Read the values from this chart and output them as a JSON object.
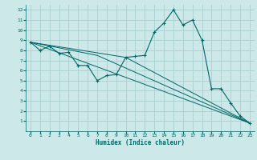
{
  "xlabel": "Humidex (Indice chaleur)",
  "bg_color": "#cce8e8",
  "grid_color": "#aad0d0",
  "line_color": "#006666",
  "xlim": [
    -0.5,
    23.5
  ],
  "ylim": [
    0,
    12.5
  ],
  "series": [
    [
      0,
      8.8
    ],
    [
      1,
      8.0
    ],
    [
      2,
      8.4
    ],
    [
      3,
      7.7
    ],
    [
      4,
      7.8
    ],
    [
      5,
      6.5
    ],
    [
      6,
      6.5
    ],
    [
      7,
      5.0
    ],
    [
      8,
      5.5
    ],
    [
      9,
      5.6
    ],
    [
      10,
      7.3
    ],
    [
      11,
      7.4
    ],
    [
      12,
      7.5
    ],
    [
      13,
      9.8
    ],
    [
      14,
      10.7
    ],
    [
      15,
      12.0
    ],
    [
      16,
      10.5
    ],
    [
      17,
      11.0
    ],
    [
      18,
      9.0
    ],
    [
      19,
      4.2
    ],
    [
      20,
      4.2
    ],
    [
      21,
      2.8
    ],
    [
      22,
      1.5
    ],
    [
      23,
      0.8
    ]
  ],
  "line2": [
    [
      0,
      8.8
    ],
    [
      23,
      0.8
    ]
  ],
  "line3": [
    [
      0,
      8.8
    ],
    [
      10,
      7.3
    ],
    [
      23,
      0.8
    ]
  ],
  "line4": [
    [
      0,
      8.8
    ],
    [
      7,
      7.5
    ],
    [
      23,
      0.8
    ]
  ]
}
